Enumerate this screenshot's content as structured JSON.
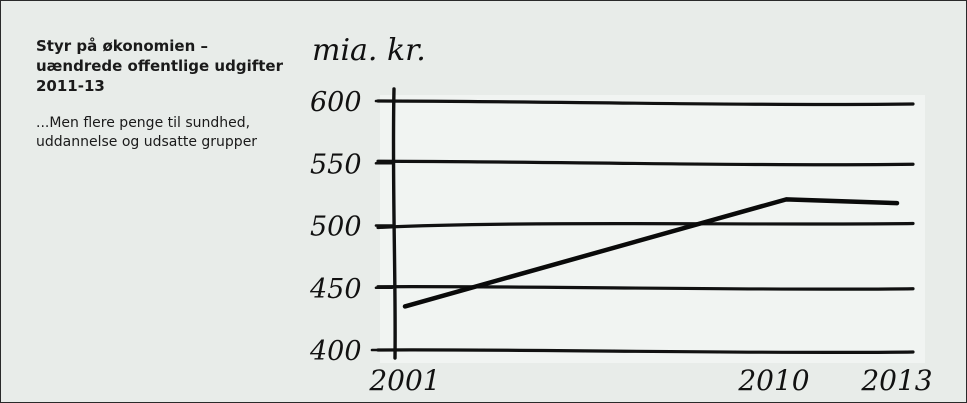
{
  "caption": {
    "title": "Styr på økonomien – uændrede offentlige udgifter 2011-13",
    "subtitle": "...Men flere penge til sundhed, uddannelse og udsatte grupper"
  },
  "chart_data": {
    "type": "line",
    "title": "Styr på økonomien – uændrede offentlige udgifter 2011-13",
    "subtitle": "...Men flere penge til sundhed, uddannelse og udsatte grupper",
    "ylabel": "mia. kr.",
    "xlabel": "",
    "ylim": [
      400,
      600
    ],
    "xlim": [
      2001,
      2013
    ],
    "yticks": [
      400,
      450,
      500,
      550,
      600
    ],
    "yticklabels": [
      "400",
      "450",
      "500",
      "550",
      "600"
    ],
    "xticklabels": [
      "2001",
      "2010",
      "2013"
    ],
    "xtickvalues": [
      2001,
      2010,
      2013
    ],
    "grid": true,
    "series": [
      {
        "x": [
          2001,
          2010.3,
          2013
        ],
        "y": [
          435,
          521,
          518
        ]
      }
    ]
  }
}
